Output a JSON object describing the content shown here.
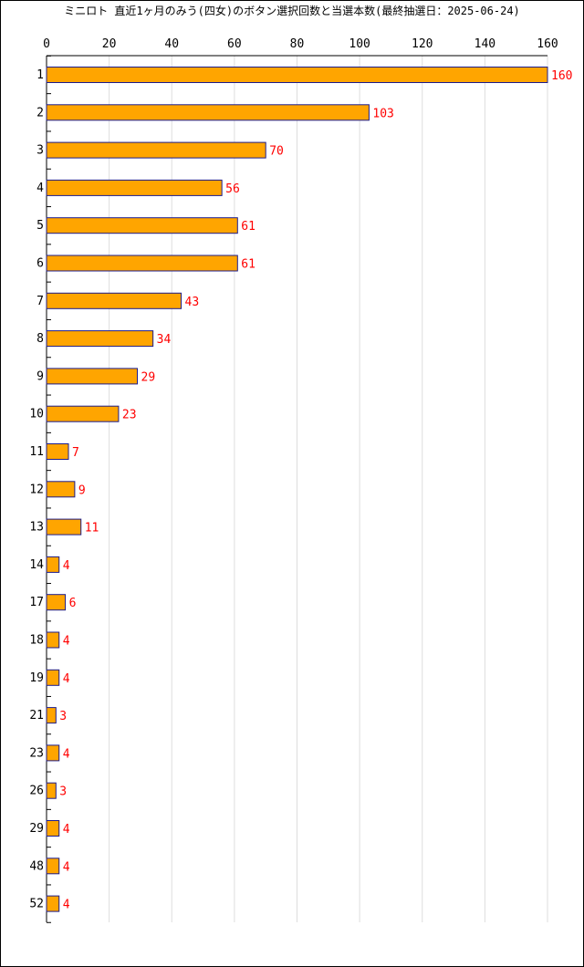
{
  "chart_data": {
    "type": "bar",
    "orientation": "horizontal",
    "title": "ミニロト 直近1ヶ月のみう(四女)のボタン選択回数と当選本数(最終抽選日：2025-06-24)",
    "categories": [
      "1",
      "2",
      "3",
      "4",
      "5",
      "6",
      "7",
      "8",
      "9",
      "10",
      "11",
      "12",
      "13",
      "14",
      "17",
      "18",
      "19",
      "21",
      "23",
      "26",
      "29",
      "48",
      "52"
    ],
    "values": [
      160,
      103,
      70,
      56,
      61,
      61,
      43,
      34,
      29,
      23,
      7,
      9,
      11,
      4,
      6,
      4,
      4,
      3,
      4,
      3,
      4,
      4,
      4
    ],
    "xlim": [
      0,
      160
    ],
    "xticks": [
      0,
      20,
      40,
      60,
      80,
      100,
      120,
      140,
      160
    ],
    "xlabel": "",
    "ylabel": "",
    "grid": true,
    "colors": {
      "bar_fill": "#ffa500",
      "bar_stroke": "#1c1c8c",
      "value_label": "#ff0000",
      "grid": "#dddddd"
    }
  }
}
